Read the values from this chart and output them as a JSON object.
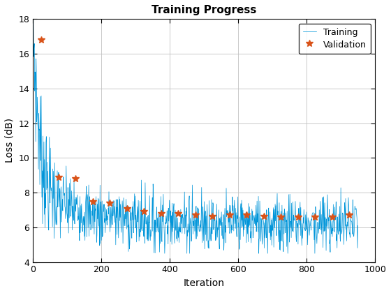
{
  "title": "Training Progress",
  "xlabel": "Iteration",
  "ylabel": "Loss (dB)",
  "xlim": [
    0,
    1000
  ],
  "ylim": [
    4,
    18
  ],
  "yticks": [
    4,
    6,
    8,
    10,
    12,
    14,
    16,
    18
  ],
  "xticks": [
    0,
    200,
    400,
    600,
    800,
    1000
  ],
  "training_color": "#0095D9",
  "validation_color": "#D95319",
  "background_color": "#FFFFFF",
  "grid_color": "#C0C0C0",
  "n_iterations": 950,
  "val_x": [
    25,
    75,
    125,
    175,
    225,
    275,
    325,
    375,
    425,
    475,
    525,
    575,
    625,
    675,
    725,
    775,
    825,
    875,
    925
  ],
  "val_y": [
    16.8,
    8.9,
    8.8,
    7.5,
    7.4,
    7.1,
    6.9,
    6.8,
    6.8,
    6.7,
    6.65,
    6.7,
    6.7,
    6.65,
    6.6,
    6.6,
    6.6,
    6.6,
    6.7
  ],
  "seed": 7
}
